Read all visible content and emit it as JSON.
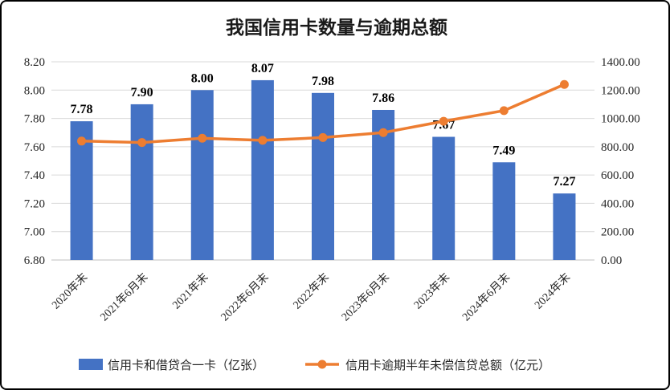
{
  "chart_data": {
    "type": "bar",
    "combo": "bar+line",
    "title": "我国信用卡数量与逾期总额",
    "categories": [
      "2020年末",
      "2021年6月末",
      "2021年末",
      "2022年6月末",
      "2022年末",
      "2023年6月末",
      "2023年末",
      "2024年6月末",
      "2024年末"
    ],
    "series": [
      {
        "name": "信用卡和借贷合一卡（亿张）",
        "type": "bar",
        "axis": "left",
        "color": "#4472C4",
        "values": [
          7.78,
          7.9,
          8.0,
          8.07,
          7.98,
          7.86,
          7.67,
          7.49,
          7.27
        ],
        "labels": [
          "7.78",
          "7.90",
          "8.00",
          "8.07",
          "7.98",
          "7.86",
          "7.67",
          "7.49",
          "7.27"
        ]
      },
      {
        "name": "信用卡逾期半年未偿信贷总额（亿元）",
        "type": "line",
        "axis": "right",
        "color": "#ED7D31",
        "values": [
          840,
          830,
          860,
          845,
          865,
          900,
          980,
          1055,
          1240
        ]
      }
    ],
    "left_axis": {
      "min": 6.8,
      "max": 8.2,
      "ticks": [
        "6.80",
        "7.00",
        "7.20",
        "7.40",
        "7.60",
        "7.80",
        "8.00",
        "8.20"
      ]
    },
    "right_axis": {
      "min": 0,
      "max": 1400,
      "ticks": [
        "0.00",
        "200.00",
        "400.00",
        "600.00",
        "800.00",
        "1000.00",
        "1200.00",
        "1400.00"
      ]
    },
    "grid": true,
    "legend_position": "bottom",
    "colors": {
      "grid": "#D9D9D9",
      "axis_text": "#262626",
      "label_text": "#000000",
      "axis_line": "#BFBFBF"
    }
  }
}
